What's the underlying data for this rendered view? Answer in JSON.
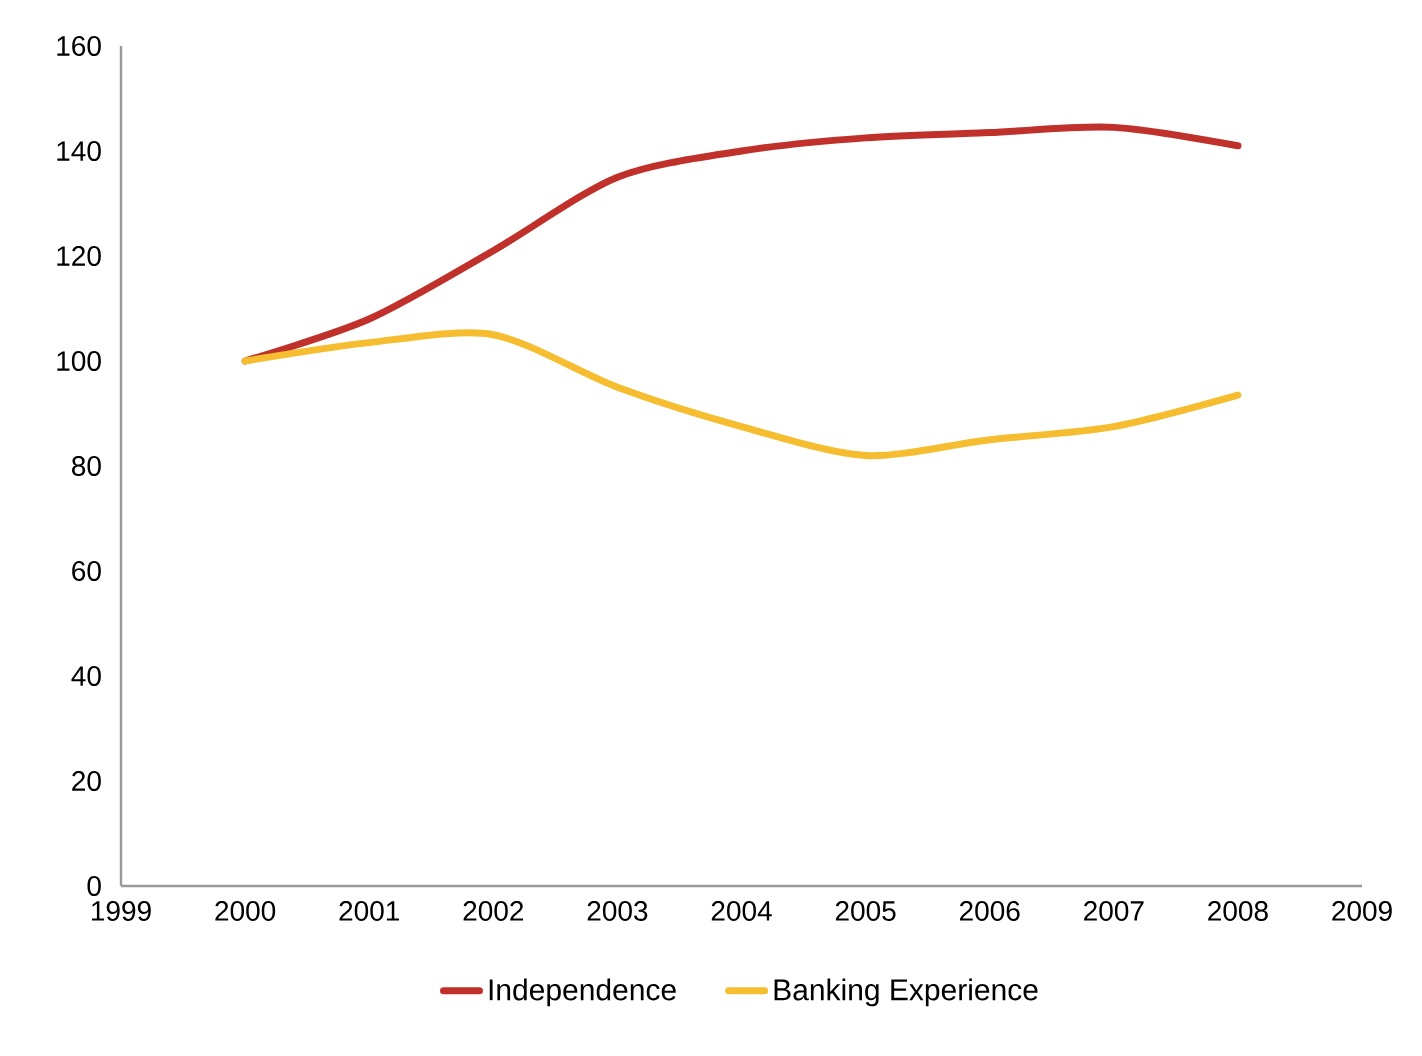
{
  "chart_data": {
    "type": "line",
    "x": [
      2000,
      2001,
      2002,
      2003,
      2004,
      2005,
      2006,
      2007,
      2008
    ],
    "series": [
      {
        "name": "Independence",
        "color": "#c0312b",
        "values": [
          100,
          108,
          121,
          135,
          140,
          142.5,
          143.5,
          144.5,
          141
        ]
      },
      {
        "name": "Banking Experience",
        "color": "#f5bd2f",
        "values": [
          100,
          103.5,
          105,
          95,
          87.5,
          82,
          85,
          87.5,
          93.5
        ]
      }
    ],
    "xlim": [
      1999,
      2009
    ],
    "xticks": [
      1999,
      2000,
      2001,
      2002,
      2003,
      2004,
      2005,
      2006,
      2007,
      2008,
      2009
    ],
    "ylim": [
      0,
      160
    ],
    "yticks": [
      0,
      20,
      40,
      60,
      80,
      100,
      120,
      140,
      160
    ],
    "grid": false,
    "legend": "bottom",
    "marker": "none",
    "line_style": "solid"
  }
}
